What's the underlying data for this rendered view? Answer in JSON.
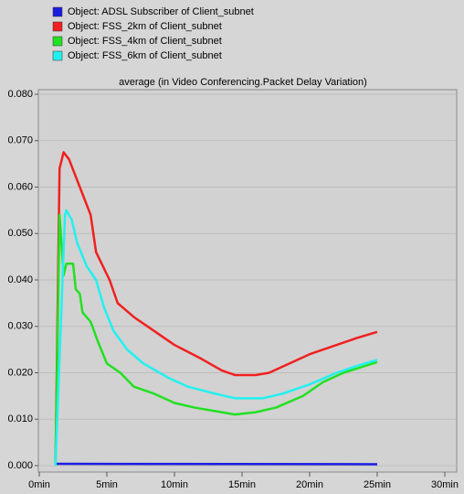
{
  "chart_data": {
    "type": "line",
    "title": "average (in Video Conferencing.Packet Delay Variation)",
    "series": [
      {
        "name": "Object: ADSL Subscriber of Client_subnet",
        "color": "#1c1ce0",
        "x": [
          1.2,
          25
        ],
        "values": [
          0.0004,
          0.0003
        ]
      },
      {
        "name": "Object: FSS_2km of Client_subnet",
        "color": "#f02020",
        "x": [
          1.2,
          1.5,
          1.8,
          2.2,
          3,
          3.8,
          4.2,
          5.2,
          5.8,
          7,
          8.5,
          10,
          12,
          13.5,
          14.5,
          16,
          17,
          18.5,
          20,
          22,
          23.5,
          25
        ],
        "values": [
          0,
          0.064,
          0.0675,
          0.066,
          0.06,
          0.054,
          0.046,
          0.04,
          0.035,
          0.032,
          0.029,
          0.026,
          0.023,
          0.0205,
          0.0195,
          0.0195,
          0.02,
          0.022,
          0.024,
          0.026,
          0.0275,
          0.0288
        ]
      },
      {
        "name": "Object: FSS_4km of Client_subnet",
        "color": "#22e022",
        "x": [
          1.2,
          1.5,
          1.8,
          2,
          2.5,
          2.7,
          3,
          3.2,
          3.8,
          4.3,
          5,
          6,
          7,
          8.5,
          10,
          11.5,
          13.5,
          14.5,
          16,
          17.5,
          19.5,
          21,
          22.5,
          25
        ],
        "values": [
          0,
          0.054,
          0.041,
          0.0435,
          0.0435,
          0.038,
          0.037,
          0.033,
          0.031,
          0.027,
          0.022,
          0.02,
          0.017,
          0.0155,
          0.0135,
          0.0125,
          0.0115,
          0.011,
          0.0115,
          0.0125,
          0.015,
          0.018,
          0.02,
          0.0223
        ]
      },
      {
        "name": "Object: FSS_6km of Client_subnet",
        "color": "#22f0f0",
        "x": [
          1.2,
          1.9,
          2,
          2.4,
          2.8,
          3.5,
          4.2,
          4.8,
          5.5,
          6.5,
          7.7,
          9.5,
          11,
          13,
          14.5,
          16.5,
          18,
          20,
          22,
          23.5,
          25
        ],
        "values": [
          0,
          0.054,
          0.055,
          0.053,
          0.048,
          0.043,
          0.04,
          0.034,
          0.029,
          0.025,
          0.022,
          0.019,
          0.017,
          0.0155,
          0.0145,
          0.0145,
          0.0155,
          0.0175,
          0.02,
          0.0215,
          0.0228
        ]
      }
    ],
    "xlim": [
      0,
      30
    ],
    "xticks": [
      {
        "value": 0,
        "label": "0min"
      },
      {
        "value": 5,
        "label": "5min"
      },
      {
        "value": 10,
        "label": "10min"
      },
      {
        "value": 15,
        "label": "15min"
      },
      {
        "value": 20,
        "label": "20min"
      },
      {
        "value": 25,
        "label": "25min"
      },
      {
        "value": 30,
        "label": "30min"
      }
    ],
    "ylim": [
      0,
      0.08
    ],
    "yticks": [
      {
        "value": 0,
        "label": "0.000"
      },
      {
        "value": 0.01,
        "label": "0.010"
      },
      {
        "value": 0.02,
        "label": "0.020"
      },
      {
        "value": 0.03,
        "label": "0.030"
      },
      {
        "value": 0.04,
        "label": "0.040"
      },
      {
        "value": 0.05,
        "label": "0.050"
      },
      {
        "value": 0.06,
        "label": "0.060"
      },
      {
        "value": 0.07,
        "label": "0.070"
      },
      {
        "value": 0.08,
        "label": "0.080"
      }
    ],
    "grid": true
  }
}
